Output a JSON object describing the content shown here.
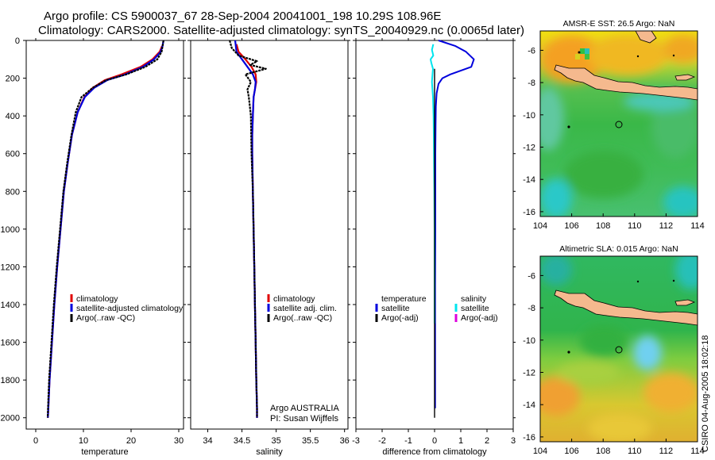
{
  "header": {
    "title_line1": "Argo profile: CS 5900037_67 28-Sep-2004 20041001_198 10.29S 108.96E",
    "title_line2": "Climatology: CARS2000. Satellite-adjusted climatology: synTS_20040929.nc (0.0065d later)"
  },
  "footer": {
    "stamp": "CSIRO 04-Aug-2005 18:02:18"
  },
  "colors": {
    "climatology": "#e00000",
    "satellite": "#0000dd",
    "argo": "#000000",
    "sal_satellite": "#00e5ee",
    "sal_argo": "#dd00dd",
    "land": "#f5b98e",
    "marker": "#000000"
  },
  "chart_data": [
    {
      "type": "line",
      "id": "temperature",
      "xlabel": "temperature",
      "ylabel": "",
      "xlim": [
        -2,
        31
      ],
      "ylim": [
        2060,
        0
      ],
      "invert_y": true,
      "x_ticks": [
        0,
        10,
        20,
        30
      ],
      "x_ticklabels": [
        "0",
        "10",
        "20",
        "30"
      ],
      "y_ticks": [
        0,
        200,
        400,
        600,
        800,
        1000,
        1200,
        1400,
        1600,
        1800,
        2000
      ],
      "y_ticklabels": [
        "0",
        "200",
        "400",
        "600",
        "800",
        "1000",
        "1200",
        "1400",
        "1600",
        "1800",
        "2000"
      ],
      "series": [
        {
          "name": "climatology",
          "color": "#e00000",
          "x": [
            26.5,
            26.0,
            24.5,
            22.0,
            18.0,
            14.5,
            12.0,
            10.2,
            8.8,
            7.6,
            6.7,
            5.9,
            5.2,
            4.5,
            3.9,
            3.4,
            2.9,
            2.55
          ],
          "y": [
            30,
            60,
            100,
            140,
            180,
            210,
            250,
            300,
            380,
            500,
            650,
            800,
            1000,
            1200,
            1400,
            1600,
            1800,
            2000
          ]
        },
        {
          "name": "satellite-adjusted climatology",
          "color": "#0000dd",
          "x": [
            26.8,
            26.6,
            26.2,
            24.8,
            22.5,
            18.8,
            15.0,
            12.3,
            10.3,
            8.8,
            7.6,
            6.7,
            5.9,
            5.2,
            4.5,
            3.9,
            3.4,
            2.9,
            2.55
          ],
          "y": [
            0,
            30,
            60,
            100,
            140,
            180,
            210,
            250,
            300,
            380,
            500,
            650,
            800,
            1000,
            1200,
            1400,
            1600,
            1800,
            2000
          ]
        },
        {
          "name": "Argo(..raw -QC)",
          "color": "#000000",
          "x": [
            26.8,
            26.6,
            26.4,
            25.5,
            23.0,
            19.0,
            14.8,
            12.0,
            9.6,
            8.4,
            7.5,
            6.6,
            5.8,
            5.1,
            4.4,
            3.8,
            3.3,
            2.8,
            2.5
          ],
          "y": [
            0,
            30,
            60,
            100,
            140,
            180,
            210,
            250,
            300,
            380,
            500,
            650,
            800,
            1000,
            1200,
            1400,
            1600,
            1800,
            2000
          ]
        }
      ],
      "legend": [
        "climatology",
        "satellite-adjusted climatology",
        "Argo(..raw -QC)"
      ]
    },
    {
      "type": "line",
      "id": "salinity",
      "xlabel": "salinity",
      "ylabel": "",
      "xlim": [
        33.75,
        36.05
      ],
      "ylim": [
        2060,
        0
      ],
      "invert_y": true,
      "x_ticks": [
        34,
        34.5,
        35,
        35.5,
        36
      ],
      "x_ticklabels": [
        "34",
        "34.5",
        "35",
        "35.5",
        "36"
      ],
      "y_ticks": [
        0,
        200,
        400,
        600,
        800,
        1000,
        1200,
        1400,
        1600,
        1800,
        2000
      ],
      "series": [
        {
          "name": "climatology",
          "color": "#e00000",
          "x": [
            34.42,
            34.45,
            34.55,
            34.64,
            34.7,
            34.71,
            34.69,
            34.67,
            34.66,
            34.65,
            34.65,
            34.66,
            34.67,
            34.68,
            34.69,
            34.7,
            34.71,
            34.72,
            34.72
          ],
          "y": [
            20,
            60,
            100,
            140,
            180,
            220,
            260,
            300,
            400,
            500,
            600,
            800,
            1000,
            1200,
            1400,
            1600,
            1800,
            1950,
            2000
          ]
        },
        {
          "name": "satellite adj. clim.",
          "color": "#0000dd",
          "x": [
            34.4,
            34.42,
            34.5,
            34.58,
            34.66,
            34.7,
            34.69,
            34.67,
            34.66,
            34.65,
            34.65,
            34.66,
            34.67,
            34.68,
            34.69,
            34.7,
            34.71,
            34.72,
            34.72
          ],
          "y": [
            0,
            60,
            100,
            140,
            180,
            220,
            260,
            300,
            400,
            500,
            600,
            800,
            1000,
            1200,
            1400,
            1600,
            1800,
            1950,
            2000
          ]
        },
        {
          "name": "Argo(..raw -QC)",
          "color": "#000000",
          "x": [
            34.32,
            34.35,
            34.45,
            34.72,
            34.62,
            34.85,
            34.55,
            34.63,
            34.58,
            34.6,
            34.63,
            34.64,
            34.66,
            34.67,
            34.68,
            34.69,
            34.7,
            34.71,
            34.72,
            34.72
          ],
          "y": [
            0,
            40,
            80,
            110,
            130,
            150,
            180,
            220,
            260,
            300,
            400,
            600,
            800,
            1000,
            1200,
            1400,
            1600,
            1800,
            1950,
            2000
          ]
        }
      ],
      "legend": [
        "climatology",
        "satellite adj. clim.",
        "Argo(..raw -QC)"
      ],
      "annotation": [
        "Argo AUSTRALIA",
        "PI: Susan Wijffels"
      ]
    },
    {
      "type": "line",
      "id": "difference",
      "xlabel": "difference from climatology",
      "ylabel": "",
      "xlim": [
        -3,
        3
      ],
      "ylim": [
        2060,
        0
      ],
      "invert_y": true,
      "x_ticks": [
        -3,
        -2,
        -1,
        0,
        1,
        2,
        3
      ],
      "x_ticklabels": [
        "-3",
        "-2",
        "-1",
        "0",
        "1",
        "2",
        "3"
      ],
      "y_ticks": [
        0,
        200,
        400,
        600,
        800,
        1000,
        1200,
        1400,
        1600,
        1800,
        2000
      ],
      "series": [
        {
          "name": "temperature satellite",
          "color": "#0000dd",
          "x": [
            0.15,
            0.8,
            1.2,
            1.5,
            1.4,
            1.0,
            0.6,
            0.3,
            0.15,
            0.08,
            0.05,
            0.04,
            0.03,
            0.03,
            0.03,
            0.02,
            0.02,
            0.02
          ],
          "y": [
            0,
            30,
            60,
            100,
            140,
            160,
            180,
            200,
            230,
            280,
            350,
            450,
            600,
            800,
            1000,
            1300,
            1600,
            1950
          ]
        },
        {
          "name": "salinity satellite",
          "color": "#00e5ee",
          "x": [
            -0.05,
            -0.1,
            -0.05,
            -0.15,
            -0.12,
            -0.06,
            -0.08,
            -0.1,
            -0.06,
            -0.04,
            -0.03,
            -0.02,
            -0.01,
            0.0,
            0.0
          ],
          "y": [
            20,
            50,
            80,
            100,
            120,
            150,
            180,
            220,
            300,
            400,
            500,
            650,
            800,
            1000,
            1500
          ]
        },
        {
          "name": "temperature Argo(-adj)",
          "color": "#000000",
          "x": [
            0.0,
            0.0,
            0.0,
            0.0,
            0.0,
            0.0,
            0.0
          ],
          "y": [
            150,
            300,
            500,
            800,
            1100,
            1500,
            2000
          ]
        }
      ],
      "legend_left": [
        "temperature",
        "satellite",
        "Argo(-adj)"
      ],
      "legend_right": [
        "salinity",
        "satellite",
        "Argo(-adj)"
      ]
    },
    {
      "type": "heatmap",
      "id": "sst_map",
      "title": "AMSR-E SST: 26.5 Argo: NaN",
      "xlim": [
        104,
        114
      ],
      "ylim": [
        -16.3,
        -4.8
      ],
      "x_ticks": [
        104,
        106,
        108,
        110,
        112,
        114
      ],
      "x_ticklabels": [
        "104",
        "106",
        "108",
        "110",
        "112",
        "114"
      ],
      "y_ticks": [
        -6,
        -8,
        -10,
        -12,
        -14,
        -16
      ],
      "y_ticklabels": [
        "-6",
        "-8",
        "-10",
        "-12",
        "-14",
        "-16"
      ],
      "marker": [
        108.96,
        -10.29
      ]
    },
    {
      "type": "heatmap",
      "id": "sla_map",
      "title": "Altimetric SLA: 0.015 Argo: NaN",
      "xlim": [
        104,
        114
      ],
      "ylim": [
        -16.3,
        -4.8
      ],
      "x_ticks": [
        104,
        106,
        108,
        110,
        112,
        114
      ],
      "x_ticklabels": [
        "104",
        "106",
        "108",
        "110",
        "112",
        "114"
      ],
      "y_ticks": [
        -6,
        -8,
        -10,
        -12,
        -14,
        -16
      ],
      "y_ticklabels": [
        "-6",
        "-8",
        "-10",
        "-12",
        "-14",
        "-16"
      ],
      "marker": [
        108.96,
        -10.29
      ]
    }
  ]
}
